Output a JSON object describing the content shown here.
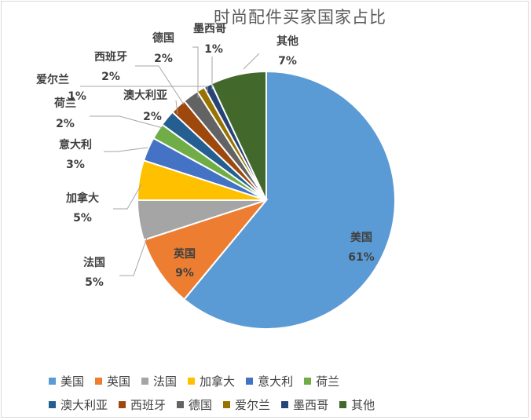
{
  "chart_data": {
    "type": "pie",
    "title": "时尚配件买家国家占比",
    "legend_position": "bottom",
    "slices": [
      {
        "name": "美国",
        "value": 61,
        "label": "61%",
        "color": "#5b9bd5"
      },
      {
        "name": "英国",
        "value": 9,
        "label": "9%",
        "color": "#ed7d31"
      },
      {
        "name": "法国",
        "value": 5,
        "label": "5%",
        "color": "#a5a5a5"
      },
      {
        "name": "加拿大",
        "value": 5,
        "label": "5%",
        "color": "#ffc000"
      },
      {
        "name": "意大利",
        "value": 3,
        "label": "3%",
        "color": "#4472c4"
      },
      {
        "name": "荷兰",
        "value": 2,
        "label": "2%",
        "color": "#70ad47"
      },
      {
        "name": "澳大利亚",
        "value": 2,
        "label": "2%",
        "color": "#255e91"
      },
      {
        "name": "西班牙",
        "value": 2,
        "label": "2%",
        "color": "#9e480e"
      },
      {
        "name": "德国",
        "value": 2,
        "label": "2%",
        "color": "#636363"
      },
      {
        "name": "爱尔兰",
        "value": 1,
        "label": "1%",
        "color": "#997300"
      },
      {
        "name": "墨西哥",
        "value": 1,
        "label": "1%",
        "color": "#264478"
      },
      {
        "name": "其他",
        "value": 7,
        "label": "7%",
        "color": "#43682b"
      }
    ]
  }
}
